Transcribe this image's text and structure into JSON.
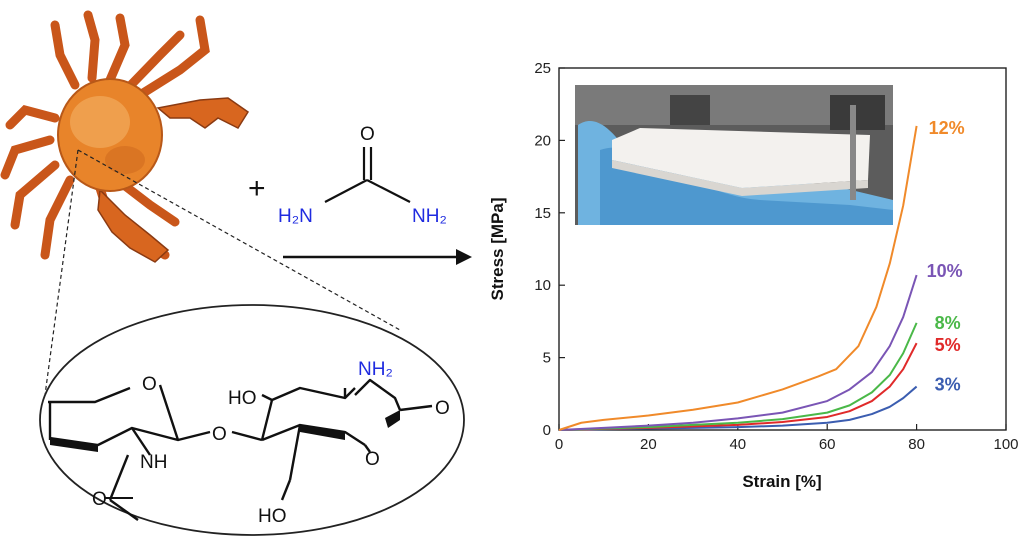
{
  "reaction": {
    "plus": "+",
    "urea": {
      "o": "O",
      "nh2_left": "H₂N",
      "nh2_right": "NH₂"
    }
  },
  "chitosan": {
    "o_ring_left": "O",
    "nh": "NH",
    "o_bridge": "O",
    "ho_top": "HO",
    "nh2": "NH₂",
    "o_ring_right": "O",
    "o_end": "O",
    "ho_bottom": "HO",
    "o_carbonyl": "O"
  },
  "colors": {
    "amine_blue": "#1f2be0",
    "crab_orange": "#e8842a",
    "s3": "#3b5db0",
    "s5": "#e02a2a",
    "s8": "#4ab848",
    "s10": "#7a55b5",
    "s12": "#f08a2a"
  },
  "chart_data": {
    "type": "line",
    "xlabel": "Strain [%]",
    "ylabel": "Stress [MPa]",
    "xlim": [
      0,
      100
    ],
    "ylim": [
      0,
      25
    ],
    "xticks": [
      0,
      20,
      40,
      60,
      80,
      100
    ],
    "yticks": [
      0,
      5,
      10,
      15,
      20,
      25
    ],
    "inset_photo": "white chitosan block held in gloved hand",
    "series": [
      {
        "name": "3%",
        "color": "#3b5db0",
        "x": [
          0,
          10,
          20,
          30,
          40,
          50,
          60,
          65,
          70,
          74,
          77,
          80
        ],
        "y": [
          0,
          0.05,
          0.1,
          0.15,
          0.2,
          0.3,
          0.5,
          0.7,
          1.1,
          1.6,
          2.2,
          3.0
        ]
      },
      {
        "name": "5%",
        "color": "#e02a2a",
        "x": [
          0,
          10,
          20,
          30,
          40,
          50,
          60,
          65,
          70,
          74,
          77,
          80
        ],
        "y": [
          0,
          0.08,
          0.15,
          0.25,
          0.35,
          0.55,
          0.9,
          1.3,
          2.0,
          3.0,
          4.2,
          6.0
        ]
      },
      {
        "name": "8%",
        "color": "#4ab848",
        "x": [
          0,
          10,
          20,
          30,
          40,
          50,
          60,
          65,
          70,
          74,
          77,
          80
        ],
        "y": [
          0,
          0.1,
          0.2,
          0.35,
          0.5,
          0.75,
          1.2,
          1.7,
          2.6,
          3.8,
          5.3,
          7.4
        ]
      },
      {
        "name": "10%",
        "color": "#7a55b5",
        "x": [
          0,
          10,
          20,
          30,
          40,
          50,
          60,
          65,
          70,
          74,
          77,
          80
        ],
        "y": [
          0,
          0.15,
          0.3,
          0.5,
          0.8,
          1.2,
          2.0,
          2.8,
          4.0,
          5.8,
          7.8,
          10.7
        ]
      },
      {
        "name": "12%",
        "color": "#f08a2a",
        "x": [
          0,
          5,
          10,
          20,
          30,
          40,
          50,
          58,
          62,
          67,
          71,
          74,
          77,
          80
        ],
        "y": [
          0,
          0.5,
          0.7,
          1.0,
          1.4,
          1.9,
          2.8,
          3.7,
          4.2,
          5.8,
          8.5,
          11.5,
          15.5,
          21.0
        ]
      }
    ]
  }
}
